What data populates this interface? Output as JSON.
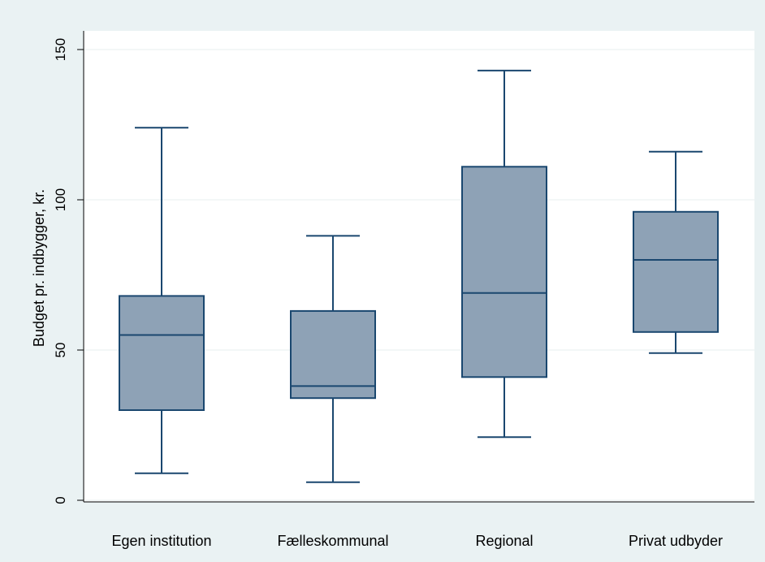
{
  "chart_data": {
    "type": "box",
    "title": "",
    "xlabel": "",
    "ylabel": "Budget pr. indbygger, kr.",
    "ylim": [
      0,
      150
    ],
    "yticks": [
      0,
      50,
      100,
      150
    ],
    "ytick_labels": [
      "0",
      "50",
      "100",
      "150"
    ],
    "grid": true,
    "legend": "none",
    "categories": [
      "Egen institution",
      "Fælleskommunal",
      "Regional",
      "Privat udbyder"
    ],
    "boxes": [
      {
        "category": "Egen institution",
        "whisker_low": 9,
        "q1": 30,
        "median": 55,
        "q3": 68,
        "whisker_high": 124
      },
      {
        "category": "Fælleskommunal",
        "whisker_low": 6,
        "q1": 34,
        "median": 38,
        "q3": 63,
        "whisker_high": 88
      },
      {
        "category": "Regional",
        "whisker_low": 21,
        "q1": 41,
        "median": 69,
        "q3": 111,
        "whisker_high": 143
      },
      {
        "category": "Privat udbyder",
        "whisker_low": 49,
        "q1": 56,
        "median": 80,
        "q3": 96,
        "whisker_high": 116
      }
    ]
  },
  "colors": {
    "outer_background": "#eaf2f3",
    "plot_background": "#ffffff",
    "box_fill": "#8ea2b6",
    "box_stroke": "#1a476f",
    "grid": "#e7efef",
    "axis": "#000000"
  }
}
